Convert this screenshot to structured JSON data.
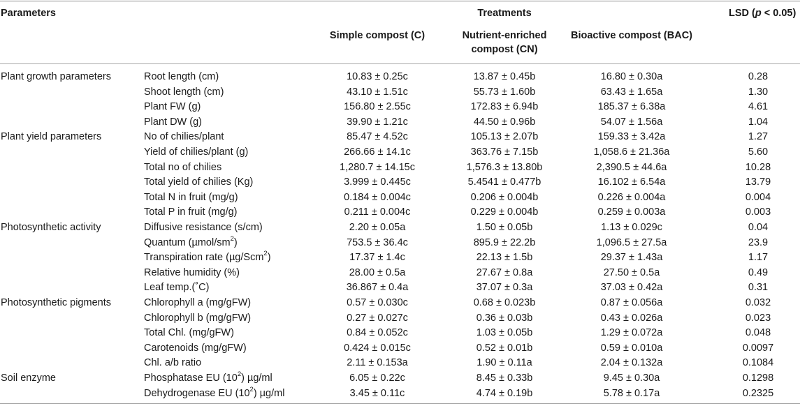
{
  "header": {
    "parameters": "Parameters",
    "treatments": "Treatments",
    "lsd": "LSD",
    "lsd_p": "p",
    "lsd_cond": "< 0.05)",
    "col_c_1": "Simple compost (C)",
    "col_cn_1": "Nutrient-enriched",
    "col_cn_2": "compost (CN)",
    "col_bac_1": "Bioactive compost (BAC)"
  },
  "rows": [
    {
      "group": "Plant growth parameters",
      "param": "Root length (cm)",
      "sup": "",
      "param_after": "",
      "c": "10.83 ± 0.25c",
      "cn": "13.87 ± 0.45b",
      "bac": "16.80 ± 0.30a",
      "lsd": "0.28"
    },
    {
      "group": "",
      "param": "Shoot length (cm)",
      "sup": "",
      "param_after": "",
      "c": "43.10 ± 1.51c",
      "cn": "55.73 ± 1.60b",
      "bac": "63.43 ± 1.65a",
      "lsd": "1.30"
    },
    {
      "group": "",
      "param": "Plant FW (g)",
      "sup": "",
      "param_after": "",
      "c": "156.80 ± 2.55c",
      "cn": "172.83 ± 6.94b",
      "bac": "185.37 ± 6.38a",
      "lsd": "4.61"
    },
    {
      "group": "",
      "param": "Plant DW (g)",
      "sup": "",
      "param_after": "",
      "c": "39.90 ± 1.21c",
      "cn": "44.50 ± 0.96b",
      "bac": "54.07 ± 1.56a",
      "lsd": "1.04"
    },
    {
      "group": "Plant yield parameters",
      "param": "No of chilies/plant",
      "sup": "",
      "param_after": "",
      "c": "85.47 ± 4.52c",
      "cn": "105.13 ± 2.07b",
      "bac": "159.33 ± 3.42a",
      "lsd": "1.27"
    },
    {
      "group": "",
      "param": "Yield of chilies/plant (g)",
      "sup": "",
      "param_after": "",
      "c": "266.66 ± 14.1c",
      "cn": "363.76 ± 7.15b",
      "bac": "1,058.6 ± 21.36a",
      "lsd": "5.60"
    },
    {
      "group": "",
      "param": "Total no of chilies",
      "sup": "",
      "param_after": "",
      "c": "1,280.7 ± 14.15c",
      "cn": "1,576.3 ± 13.80b",
      "bac": "2,390.5 ± 44.6a",
      "lsd": "10.28"
    },
    {
      "group": "",
      "param": "Total yield of chilies (Kg)",
      "sup": "",
      "param_after": "",
      "c": "3.999 ± 0.445c",
      "cn": "5.4541 ± 0.477b",
      "bac": "16.102 ± 6.54a",
      "lsd": "13.79"
    },
    {
      "group": "",
      "param": "Total N in fruit (mg/g)",
      "sup": "",
      "param_after": "",
      "c": "0.184 ± 0.004c",
      "cn": "0.206 ± 0.004b",
      "bac": "0.226 ± 0.004a",
      "lsd": "0.004"
    },
    {
      "group": "",
      "param": "Total P in fruit (mg/g)",
      "sup": "",
      "param_after": "",
      "c": "0.211 ± 0.004c",
      "cn": "0.229 ± 0.004b",
      "bac": "0.259 ± 0.003a",
      "lsd": "0.003"
    },
    {
      "group": "Photosynthetic activity",
      "param": "Diffusive resistance (s/cm)",
      "sup": "",
      "param_after": "",
      "c": "2.20 ± 0.05a",
      "cn": "1.50 ± 0.05b",
      "bac": "1.13 ± 0.029c",
      "lsd": "0.04"
    },
    {
      "group": "",
      "param": "Quantum (µmol/sm",
      "sup": "2",
      "param_after": ")",
      "c": "753.5 ± 36.4c",
      "cn": "895.9 ± 22.2b",
      "bac": "1,096.5 ± 27.5a",
      "lsd": "23.9"
    },
    {
      "group": "",
      "param": "Transpiration rate (µg/Scm",
      "sup": "2",
      "param_after": ")",
      "c": "17.37 ± 1.4c",
      "cn": "22.13 ± 1.5b",
      "bac": "29.37 ± 1.43a",
      "lsd": "1.17"
    },
    {
      "group": "",
      "param": "Relative humidity (%)",
      "sup": "",
      "param_after": "",
      "c": "28.00 ± 0.5a",
      "cn": "27.67 ± 0.8a",
      "bac": "27.50 ± 0.5a",
      "lsd": "0.49"
    },
    {
      "group": "",
      "param": "Leaf temp.(˚C)",
      "sup": "",
      "param_after": "",
      "c": "36.867 ± 0.4a",
      "cn": "37.07 ± 0.3a",
      "bac": "37.03 ± 0.42a",
      "lsd": "0.31"
    },
    {
      "group": "Photosynthetic pigments",
      "param": "Chlorophyll a (mg/gFW)",
      "sup": "",
      "param_after": "",
      "c": "0.57 ± 0.030c",
      "cn": "0.68 ± 0.023b",
      "bac": "0.87 ± 0.056a",
      "lsd": "0.032"
    },
    {
      "group": "",
      "param": "Chlorophyll b (mg/gFW)",
      "sup": "",
      "param_after": "",
      "c": "0.27 ± 0.027c",
      "cn": "0.36 ± 0.03b",
      "bac": "0.43 ± 0.026a",
      "lsd": "0.023"
    },
    {
      "group": "",
      "param": "Total Chl. (mg/gFW)",
      "sup": "",
      "param_after": "",
      "c": "0.84 ± 0.052c",
      "cn": "1.03 ± 0.05b",
      "bac": "1.29 ± 0.072a",
      "lsd": "0.048"
    },
    {
      "group": "",
      "param": "Carotenoids (mg/gFW)",
      "sup": "",
      "param_after": "",
      "c": "0.424 ± 0.015c",
      "cn": "0.52 ± 0.01b",
      "bac": "0.59 ± 0.010a",
      "lsd": "0.0097"
    },
    {
      "group": "",
      "param": "Chl. a/b ratio",
      "sup": "",
      "param_after": "",
      "c": "2.11 ± 0.153a",
      "cn": "1.90 ± 0.11a",
      "bac": "2.04 ± 0.132a",
      "lsd": "0.1084"
    },
    {
      "group": "Soil enzyme",
      "param": "Phosphatase EU (10",
      "sup": "2",
      "param_after": ") µg/ml",
      "c": "6.05 ± 0.22c",
      "cn": "8.45 ± 0.33b",
      "bac": "9.45 ± 0.30a",
      "lsd": "0.1298"
    },
    {
      "group": "",
      "param": "Dehydrogenase EU (10",
      "sup": "2",
      "param_after": ") µg/ml",
      "c": "3.45 ± 0.11c",
      "cn": "4.74 ± 0.19b",
      "bac": "5.78 ± 0.17a",
      "lsd": "0.2325"
    }
  ]
}
